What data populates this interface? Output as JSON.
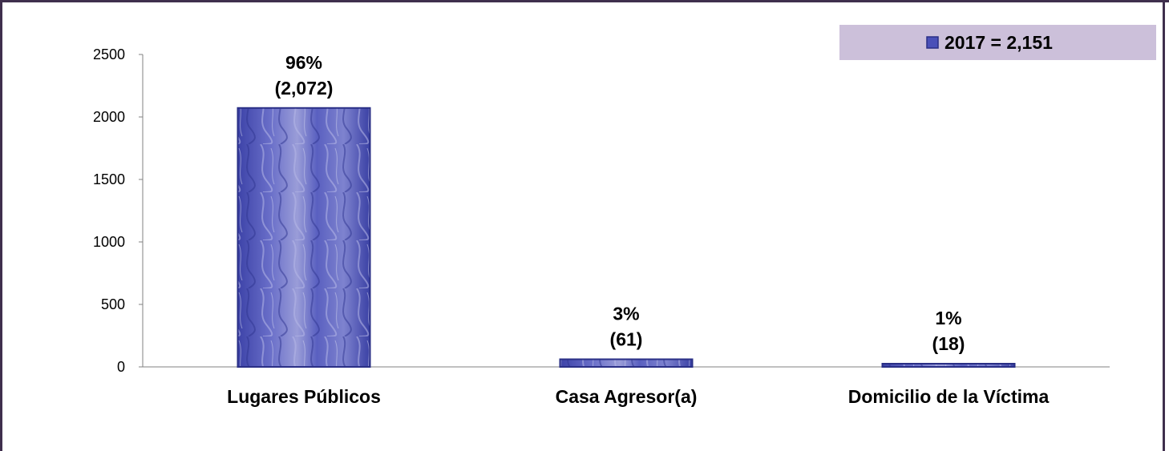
{
  "chart_data": {
    "type": "bar",
    "categories": [
      "Lugares Públicos",
      "Casa Agresor(a)",
      "Domicilio de la Víctima"
    ],
    "series": [
      {
        "name": "2017 = 2,151",
        "values": [
          2072,
          61,
          18
        ]
      }
    ],
    "data_labels": [
      {
        "percent": "96%",
        "count": "(2,072)"
      },
      {
        "percent": "3%",
        "count": "(61)"
      },
      {
        "percent": "1%",
        "count": "(18)"
      }
    ],
    "y_ticks": [
      "0",
      "500",
      "1000",
      "1500",
      "2000",
      "2500"
    ],
    "ylim": [
      0,
      2500
    ],
    "grid": false,
    "legend_position": "top-right",
    "colors": {
      "bar": "#4a50b8",
      "bar_light": "#8c8fd6",
      "bar_dark": "#2a2f86",
      "legend_bg": "#ccc0da",
      "frame": "#3f2f4d",
      "axis": "#808080"
    }
  }
}
